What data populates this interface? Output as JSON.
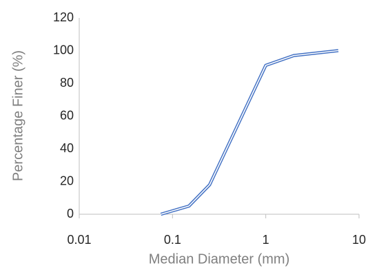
{
  "chart_data": {
    "type": "line",
    "xscale": "log",
    "x_label": "Median Diameter (mm)",
    "y_label": "Percentage Finer (%)",
    "series": [
      {
        "color": "#4472c4",
        "x": [
          0.075,
          0.15,
          0.25,
          1,
          2,
          6
        ],
        "values": [
          0,
          5,
          18,
          91,
          97,
          100
        ]
      }
    ],
    "xlim": [
      0.01,
      10
    ],
    "xticks": [
      0.01,
      0.1,
      1,
      10
    ],
    "ylim": [
      0,
      120
    ],
    "yticks": [
      0,
      20,
      40,
      60,
      80,
      100,
      120
    ],
    "grid": false
  }
}
